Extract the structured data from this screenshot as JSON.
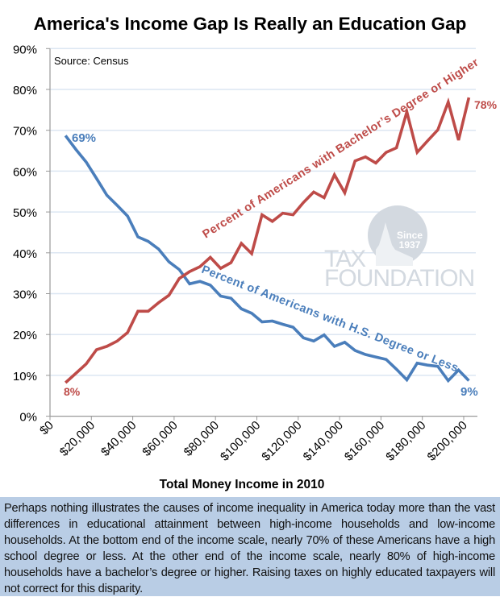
{
  "chart_data": {
    "type": "line",
    "title": "America's Income Gap Is Really an Education Gap",
    "source": "Source: Census",
    "xlabel": "Total Money Income in 2010",
    "ylabel": "",
    "xlim": [
      0,
      205000
    ],
    "ylim": [
      0,
      90
    ],
    "grid": true,
    "x_ticks": [
      0,
      20000,
      40000,
      60000,
      80000,
      100000,
      120000,
      140000,
      160000,
      180000,
      200000
    ],
    "x_tick_labels": [
      "$0",
      "$20,000",
      "$40,000",
      "$60,000",
      "$80,000",
      "$100,000",
      "$120,000",
      "$140,000",
      "$160,000",
      "$180,000",
      "$200,000"
    ],
    "y_ticks": [
      0,
      10,
      20,
      30,
      40,
      50,
      60,
      70,
      80,
      90
    ],
    "y_tick_labels": [
      "0%",
      "10%",
      "20%",
      "30%",
      "40%",
      "50%",
      "60%",
      "70%",
      "80%",
      "90%"
    ],
    "x": [
      7500,
      12500,
      17500,
      22500,
      27500,
      32500,
      37500,
      42500,
      47500,
      52500,
      57500,
      62500,
      67500,
      72500,
      77500,
      82500,
      87500,
      92500,
      97500,
      102500,
      107500,
      112500,
      117500,
      122500,
      127500,
      132500,
      137500,
      142500,
      147500,
      152500,
      157500,
      162500,
      167500,
      172500,
      177500,
      182500,
      187500,
      192500,
      197500,
      202500
    ],
    "series": [
      {
        "name": "Percent of Americans with H.S. Degree or Less",
        "color": "#4a7ebb",
        "values": [
          68.7,
          65.3,
          62.2,
          58.2,
          54.1,
          51.6,
          49.0,
          43.9,
          42.8,
          40.9,
          37.8,
          35.9,
          32.4,
          33.0,
          32.1,
          29.4,
          28.9,
          26.3,
          25.2,
          23.1,
          23.3,
          22.5,
          21.8,
          19.2,
          18.4,
          19.9,
          17.1,
          18.1,
          16.1,
          15.1,
          14.5,
          13.9,
          11.5,
          8.9,
          13.0,
          12.5,
          12.2,
          8.7,
          11.3,
          8.7
        ],
        "start_label": "69%",
        "end_label": "9%"
      },
      {
        "name": "Percent of Americans with Bachelor’s Degree or Higher",
        "color": "#be4b48",
        "values": [
          8.2,
          10.5,
          12.8,
          16.3,
          17.1,
          18.4,
          20.5,
          25.7,
          25.7,
          27.8,
          29.6,
          33.7,
          35.4,
          36.6,
          38.9,
          36.2,
          37.6,
          42.3,
          39.8,
          49.3,
          47.7,
          49.7,
          49.3,
          52.3,
          54.9,
          53.5,
          59.1,
          54.7,
          62.5,
          63.5,
          62.0,
          64.6,
          65.7,
          74.5,
          64.6,
          67.4,
          70.1,
          76.9,
          67.6,
          78.0
        ],
        "start_label": "8%",
        "end_label": "78%"
      }
    ]
  },
  "watermark": {
    "line1": "TAX",
    "line2": "FOUNDATION",
    "since": "Since",
    "year": "1937"
  },
  "footer": {
    "text": "Perhaps nothing illustrates the causes of income inequality in America today more than the vast differences in educational attainment between high-income households and low-income households. At the bottom end of the income scale, nearly 70% of these Americans have a high school degree or less. At the other end of the income scale, nearly 80% of high-income households have a bachelor’s degree or higher. Raising taxes on highly educated taxpayers will not correct for this disparity."
  }
}
